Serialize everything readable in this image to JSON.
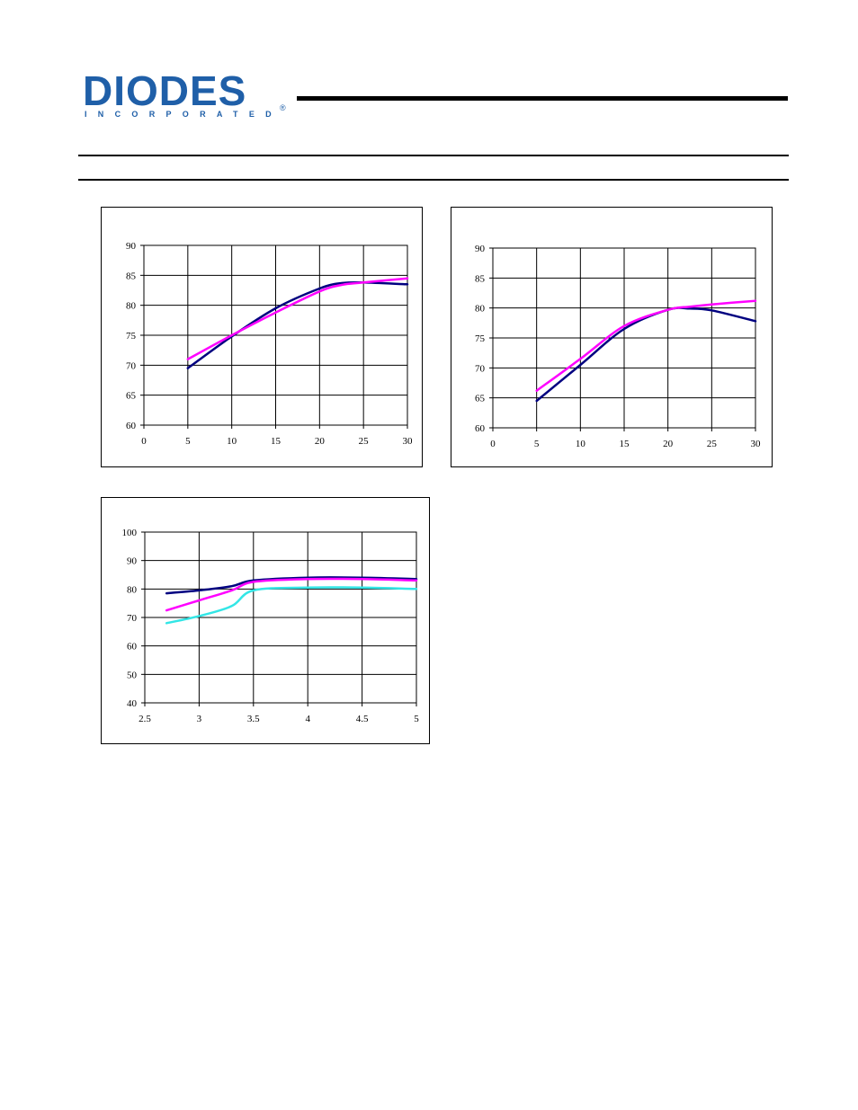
{
  "header": {
    "logo_text": "DIODES",
    "logo_tagline": "INCORPORATED",
    "logo_registered": "®",
    "brand_color": "#1f5fa8"
  },
  "chart_data": [
    {
      "type": "line",
      "title": "",
      "xlabel": "",
      "ylabel": "",
      "xlim": [
        0,
        30
      ],
      "ylim": [
        60,
        90
      ],
      "x_ticks": [
        0,
        5,
        10,
        15,
        20,
        25,
        30
      ],
      "y_ticks": [
        60,
        65,
        70,
        75,
        80,
        85,
        90
      ],
      "grid": true,
      "series": [
        {
          "color": "#000080",
          "x": [
            5,
            10,
            15,
            20,
            22.5,
            25,
            30
          ],
          "y": [
            69.5,
            74.8,
            79.5,
            82.8,
            83.7,
            83.8,
            83.5
          ]
        },
        {
          "color": "#ff00ff",
          "x": [
            5,
            10,
            15,
            20,
            22.5,
            25,
            30
          ],
          "y": [
            71,
            75,
            78.8,
            82.3,
            83.4,
            83.8,
            84.5
          ]
        }
      ]
    },
    {
      "type": "line",
      "title": "",
      "xlabel": "",
      "ylabel": "",
      "xlim": [
        0,
        30
      ],
      "ylim": [
        60,
        90
      ],
      "x_ticks": [
        0,
        5,
        10,
        15,
        20,
        25,
        30
      ],
      "y_ticks": [
        60,
        65,
        70,
        75,
        80,
        85,
        90
      ],
      "grid": true,
      "series": [
        {
          "color": "#000080",
          "x": [
            5,
            10,
            15,
            20,
            22.5,
            25,
            30
          ],
          "y": [
            64.5,
            70.5,
            76.5,
            79.7,
            79.9,
            79.6,
            77.8
          ]
        },
        {
          "color": "#ff00ff",
          "x": [
            5,
            10,
            15,
            20,
            22.5,
            25,
            30
          ],
          "y": [
            66.2,
            71.5,
            77,
            79.7,
            80.2,
            80.6,
            81.2
          ]
        }
      ]
    },
    {
      "type": "line",
      "title": "",
      "xlabel": "",
      "ylabel": "",
      "xlim": [
        2.5,
        5
      ],
      "ylim": [
        40,
        100
      ],
      "x_ticks": [
        "2.5",
        "3",
        "3.5",
        "4",
        "4.5",
        "5"
      ],
      "y_ticks": [
        40,
        50,
        60,
        70,
        80,
        90,
        100
      ],
      "grid": true,
      "series": [
        {
          "color": "#000080",
          "x": [
            2.7,
            3,
            3.3,
            3.5,
            4,
            4.5,
            5
          ],
          "y": [
            78.5,
            79.5,
            81,
            83,
            84,
            84,
            83.5
          ]
        },
        {
          "color": "#ff00ff",
          "x": [
            2.7,
            3,
            3.3,
            3.5,
            4,
            4.5,
            5
          ],
          "y": [
            72.5,
            76,
            79.5,
            82.5,
            83.5,
            83.5,
            83
          ]
        },
        {
          "color": "#33e6e6",
          "x": [
            2.7,
            3,
            3.3,
            3.5,
            4,
            4.5,
            5
          ],
          "y": [
            68,
            70.5,
            74,
            79.5,
            80.5,
            80.5,
            80
          ]
        }
      ]
    }
  ]
}
